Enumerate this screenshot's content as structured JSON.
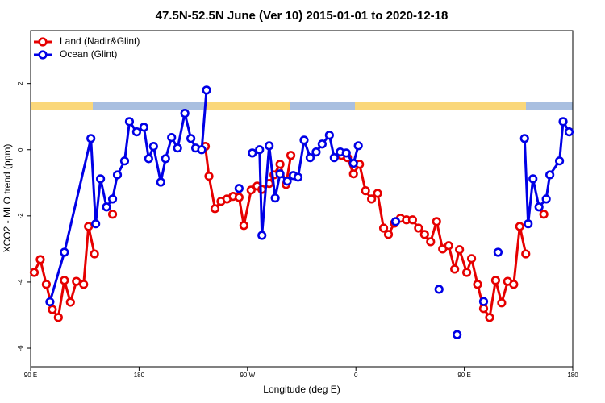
{
  "chart_data": {
    "type": "line",
    "title": "47.5N-52.5N June (Ver 10)   2015-01-01 to 2020-12-18",
    "x_label": "Longitude (deg E)",
    "y_label": "XCO2 - MLO trend (ppm)",
    "xlim": [
      90,
      540
    ],
    "ylim": [
      -6.56,
      3.6
    ],
    "xticks": [
      {
        "value": 90,
        "label": "90 E"
      },
      {
        "value": 180,
        "label": "180"
      },
      {
        "value": 270,
        "label": "90 W"
      },
      {
        "value": 360,
        "label": "0"
      },
      {
        "value": 450,
        "label": "90 E"
      },
      {
        "value": 540,
        "label": "180"
      }
    ],
    "yticks": [
      -6,
      -4,
      -2,
      0,
      2
    ],
    "legend": "top-left",
    "series": [
      {
        "name": "Land (Nadir&Glint)",
        "color": "#e60000",
        "x": [
          93,
          98,
          103,
          108,
          113,
          118,
          123,
          128,
          134,
          138,
          143,
          null,
          158,
          null,
          235,
          238,
          243,
          248,
          253,
          258,
          263,
          267,
          273,
          278,
          282,
          288,
          292,
          297,
          302,
          306,
          null,
          348,
          353,
          358,
          363,
          368,
          373,
          378,
          383,
          387,
          392,
          397,
          402,
          407,
          412,
          417,
          422,
          427,
          432,
          437,
          442,
          446,
          452,
          456,
          461,
          466,
          471,
          476,
          481,
          486,
          491,
          496,
          501,
          null,
          516
        ],
        "values": [
          -3.71,
          -3.32,
          -4.07,
          -4.83,
          -5.07,
          -3.95,
          -4.61,
          -3.98,
          -4.07,
          -2.32,
          -3.15,
          null,
          -1.95,
          null,
          0.1,
          -0.8,
          -1.78,
          -1.56,
          -1.49,
          -1.41,
          -1.44,
          -2.29,
          -1.22,
          -1.1,
          -1.2,
          -1.02,
          -0.76,
          -0.44,
          -1.05,
          -0.17,
          null,
          -0.17,
          -0.24,
          -0.73,
          -0.44,
          -1.24,
          -1.49,
          -1.32,
          -2.37,
          -2.56,
          -2.22,
          -2.07,
          -2.12,
          -2.12,
          -2.37,
          -2.56,
          -2.78,
          -2.17,
          -3.0,
          -2.9,
          -3.61,
          -3.02,
          -3.71,
          -3.29,
          -4.07,
          -4.8,
          -5.07,
          -3.95,
          -4.63,
          -3.98,
          -4.07,
          -2.32,
          -3.15,
          null,
          -1.95
        ]
      },
      {
        "name": "Ocean (Glint)",
        "color": "#0000e6",
        "x": [
          106,
          118,
          140,
          144,
          148,
          153,
          158,
          162,
          168,
          172,
          178,
          184,
          188,
          192,
          198,
          202,
          207,
          212,
          218,
          223,
          227,
          232,
          236,
          null,
          263,
          null,
          274,
          280,
          282,
          288,
          293,
          297,
          303,
          308,
          312,
          317,
          322,
          327,
          332,
          338,
          342,
          347,
          352,
          358,
          362,
          null,
          393,
          null,
          429,
          null,
          444,
          null,
          466,
          null,
          478,
          null,
          500,
          503,
          507,
          512,
          518,
          521,
          529,
          532,
          537
        ],
        "values": [
          -4.6,
          -3.1,
          0.34,
          -2.24,
          -0.88,
          -1.73,
          -1.49,
          -0.76,
          -0.34,
          0.85,
          0.54,
          0.68,
          -0.27,
          0.1,
          -0.98,
          -0.27,
          0.37,
          0.05,
          1.1,
          0.34,
          0.05,
          0,
          1.8,
          null,
          -1.17,
          null,
          -0.1,
          0,
          -2.59,
          0.12,
          -1.46,
          -0.73,
          -0.95,
          -0.78,
          -0.83,
          0.29,
          -0.24,
          -0.07,
          0.17,
          0.44,
          -0.24,
          -0.07,
          -0.1,
          -0.41,
          0.12,
          null,
          -2.17,
          null,
          -4.22,
          null,
          -5.59,
          null,
          -4.59,
          null,
          -3.1,
          null,
          0.34,
          -2.24,
          -0.88,
          -1.73,
          -1.49,
          -0.76,
          -0.34,
          0.85,
          0.54
        ]
      }
    ]
  }
}
